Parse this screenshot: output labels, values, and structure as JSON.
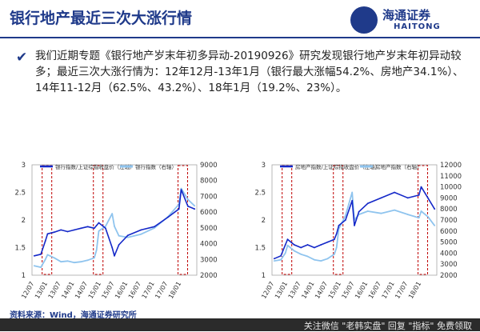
{
  "slide": {
    "title": "银行地产最近三次大涨行情",
    "bullet": "我们近期专题《银行地产岁末年初多异动-20190926》研究发现银行地产岁末年初异动较多；最近三次大涨行情为：12年12月-13年1月（银行最大涨幅54.2%、房地产34.1%）、14年11-12月（62.5%、43.2%）、18年1月（19.2%、23%）。",
    "source": "资料来源：Wind，海通证券研究所",
    "footer": "关注微信 \"老韩实盘\" 回复 \"指标\" 免费领取"
  },
  "logo": {
    "cn": "海通证券",
    "en": "HAITONG",
    "icon": "haitong-logo-icon"
  },
  "colors": {
    "brand": "#1f3a8a",
    "series_dark": "#1428c8",
    "series_light": "#8fc4ee",
    "highlight_box": "#c00000"
  },
  "chart_data": [
    {
      "type": "line",
      "series": [
        {
          "name": "银行指数/上证综指收盘价（左轴）",
          "axis": "left",
          "color": "#1428c8",
          "x": [
            "12/07",
            "12/10",
            "12/12",
            "13/01",
            "13/04",
            "13/07",
            "13/10",
            "14/01",
            "14/04",
            "14/07",
            "14/10",
            "14/11",
            "14/12",
            "15/03",
            "15/06",
            "15/07",
            "15/09",
            "16/01",
            "16/07",
            "17/01",
            "17/07",
            "17/12",
            "18/01",
            "18/04",
            "18/07"
          ],
          "values": [
            1.35,
            1.38,
            1.62,
            1.75,
            1.78,
            1.82,
            1.79,
            1.82,
            1.85,
            1.88,
            1.85,
            1.9,
            1.95,
            1.85,
            1.5,
            1.35,
            1.55,
            1.72,
            1.82,
            1.88,
            2.05,
            2.2,
            2.55,
            2.25,
            2.2
          ]
        },
        {
          "name": "银行指数（右轴）",
          "axis": "right",
          "color": "#8fc4ee",
          "x": [
            "12/07",
            "12/10",
            "12/12",
            "13/01",
            "13/04",
            "13/07",
            "13/10",
            "14/01",
            "14/04",
            "14/07",
            "14/10",
            "14/11",
            "14/12",
            "15/03",
            "15/06",
            "15/07",
            "15/09",
            "16/01",
            "16/07",
            "17/01",
            "17/07",
            "17/12",
            "18/01",
            "18/04",
            "18/07"
          ],
          "values": [
            2600,
            2500,
            3000,
            3300,
            3100,
            2850,
            2900,
            2800,
            2850,
            2950,
            3100,
            3600,
            4800,
            5100,
            5900,
            5100,
            4500,
            4400,
            4600,
            5000,
            5700,
            6500,
            7500,
            6800,
            6400
          ]
        }
      ],
      "x_ticks": [
        "12/07",
        "13/01",
        "13/07",
        "14/01",
        "14/07",
        "15/01",
        "15/07",
        "16/01",
        "16/07",
        "17/01",
        "17/07",
        "18/01"
      ],
      "left_axis": {
        "ylim": [
          1,
          3
        ],
        "ticks": [
          1,
          1.5,
          2,
          2.5,
          3
        ]
      },
      "right_axis": {
        "ylim": [
          2000,
          9000
        ],
        "ticks": [
          2000,
          3000,
          4000,
          5000,
          6000,
          7000,
          8000,
          9000
        ]
      },
      "highlight_periods": [
        [
          "12/12",
          "13/01"
        ],
        [
          "14/11",
          "14/12"
        ],
        [
          "18/01",
          "18/01"
        ]
      ]
    },
    {
      "type": "line",
      "series": [
        {
          "name": "房地产指数/上证综指收盘价（左轴）",
          "axis": "left",
          "color": "#1428c8",
          "x": [
            "12/07",
            "12/10",
            "12/12",
            "13/01",
            "13/04",
            "13/07",
            "13/10",
            "14/01",
            "14/04",
            "14/07",
            "14/10",
            "14/11",
            "14/12",
            "15/03",
            "15/06",
            "15/07",
            "15/09",
            "16/01",
            "16/07",
            "17/01",
            "17/07",
            "17/12",
            "18/01",
            "18/04",
            "18/07"
          ],
          "values": [
            1.3,
            1.35,
            1.55,
            1.65,
            1.55,
            1.5,
            1.55,
            1.5,
            1.55,
            1.6,
            1.65,
            1.75,
            1.9,
            2.0,
            2.35,
            1.9,
            2.15,
            2.3,
            2.4,
            2.5,
            2.4,
            2.45,
            2.6,
            2.4,
            2.2
          ]
        },
        {
          "name": "房地产指数（右轴）",
          "axis": "right",
          "color": "#8fc4ee",
          "x": [
            "12/07",
            "12/10",
            "12/12",
            "13/01",
            "13/04",
            "13/07",
            "13/10",
            "14/01",
            "14/04",
            "14/07",
            "14/10",
            "14/11",
            "14/12",
            "15/03",
            "15/06",
            "15/07",
            "15/09",
            "16/01",
            "16/07",
            "17/01",
            "17/07",
            "17/12",
            "18/01",
            "18/04",
            "18/07"
          ],
          "values": [
            3300,
            3400,
            4000,
            4700,
            4200,
            3900,
            3700,
            3400,
            3300,
            3500,
            3900,
            4500,
            6200,
            7400,
            9500,
            7000,
            7500,
            7800,
            7600,
            7900,
            7500,
            7200,
            7800,
            7300,
            6500
          ]
        }
      ],
      "x_ticks": [
        "12/07",
        "13/01",
        "13/07",
        "14/01",
        "14/07",
        "15/01",
        "15/07",
        "16/01",
        "16/07",
        "17/01",
        "17/07",
        "18/01"
      ],
      "left_axis": {
        "ylim": [
          1,
          3
        ],
        "ticks": [
          1,
          1.5,
          2,
          2.5,
          3
        ]
      },
      "right_axis": {
        "ylim": [
          2000,
          12000
        ],
        "ticks": [
          2000,
          3000,
          4000,
          5000,
          6000,
          7000,
          8000,
          9000,
          10000,
          11000,
          12000
        ]
      },
      "highlight_periods": [
        [
          "12/12",
          "13/01"
        ],
        [
          "14/11",
          "14/12"
        ],
        [
          "18/01",
          "18/01"
        ]
      ]
    }
  ]
}
